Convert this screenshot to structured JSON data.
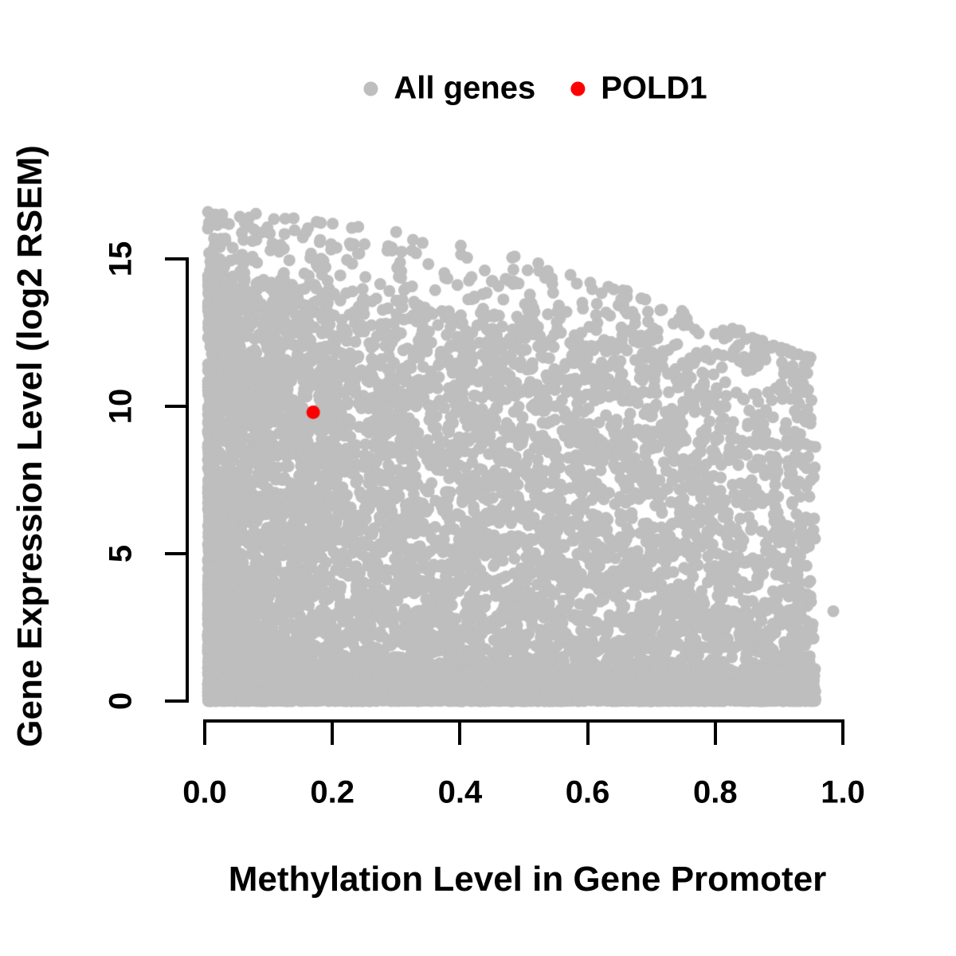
{
  "figure": {
    "background": "#FFFFFF"
  },
  "legend": {
    "items": [
      {
        "id": "all-genes",
        "label": "All genes",
        "color": "#BEBEBE"
      },
      {
        "id": "pold1",
        "label": "POLD1",
        "color": "#FF0000"
      }
    ]
  },
  "chart_data": {
    "type": "scatter",
    "title": "",
    "xlabel": "Methylation Level in Gene Promoter",
    "ylabel": "Gene Expression Level (log2 RSEM)",
    "xlim": [
      0,
      1
    ],
    "ylim": [
      0,
      15
    ],
    "grid": "off",
    "legend_position": "top-center",
    "axis_color": "#000000",
    "x_ticks": [
      {
        "value": 0.0,
        "label": "0.0"
      },
      {
        "value": 0.2,
        "label": "0.2"
      },
      {
        "value": 0.4,
        "label": "0.4"
      },
      {
        "value": 0.6,
        "label": "0.6"
      },
      {
        "value": 0.8,
        "label": "0.8"
      },
      {
        "value": 1.0,
        "label": "1.0"
      }
    ],
    "y_ticks": [
      {
        "value": 0,
        "label": "0"
      },
      {
        "value": 5,
        "label": "5"
      },
      {
        "value": 10,
        "label": "10"
      },
      {
        "value": 15,
        "label": "15"
      }
    ],
    "series": [
      {
        "name": "All genes",
        "color": "#BEBEBE",
        "marker_radius_px": 7.5,
        "n_points": 9500,
        "x_range": [
          0.005,
          0.957
        ],
        "y_range": [
          0,
          16.6
        ],
        "density_profile": "very dense lower-left mass, solid band along y=0 across full x range; upper envelope declines from ~16.5 at methylation 0.05 to ~12 at methylation 0.95; sparse isolated dots along the upper rim",
        "generator": {
          "seed": 13,
          "x_min": 0.005,
          "x_span": 0.952,
          "ytop_base": 14.6,
          "ytop_slope": 3.1,
          "rim_base": 16.6,
          "rim_coef": 5.5,
          "rim_pow": 1.8,
          "components": [
            {
              "type": "main",
              "weight": 0.7,
              "x_pow": 1.7,
              "y_pow": 1.5
            },
            {
              "type": "floor",
              "weight": 0.25,
              "x_pow": 0.9,
              "y_scale": 1.1,
              "y_pow": 1.8
            },
            {
              "type": "rim",
              "weight": 0.025,
              "x_pow": 1.6
            },
            {
              "type": "fill",
              "weight": 0.025,
              "x_pow": 1.2
            }
          ]
        },
        "isolated_points": [
          {
            "x": 0.985,
            "y": 3.05
          }
        ]
      },
      {
        "name": "POLD1",
        "color": "#FF0000",
        "marker_radius_px": 8.5,
        "points": [
          {
            "x": 0.17,
            "y": 9.8
          }
        ]
      }
    ]
  }
}
